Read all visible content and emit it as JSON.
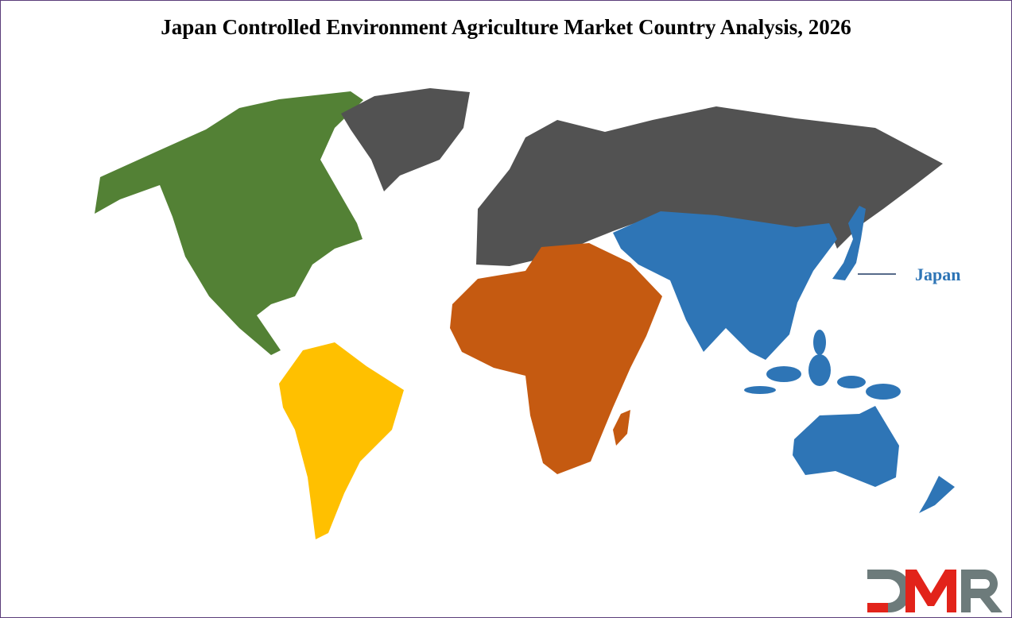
{
  "title": "Japan Controlled Environment Agriculture Market Country Analysis, 2026",
  "highlight_label": "Japan",
  "colors": {
    "north_america": "#538135",
    "south_america": "#ffc000",
    "europe_russia_greenland": "#525252",
    "africa_middle_east": "#c55a11",
    "asia_pacific": "#2e75b6",
    "label": "#2e75b6",
    "frame": "#5b3d7a"
  },
  "logo": {
    "text": "DMR",
    "colors": [
      "#6d7b7b",
      "#e2231a",
      "#6d7b7b"
    ]
  }
}
